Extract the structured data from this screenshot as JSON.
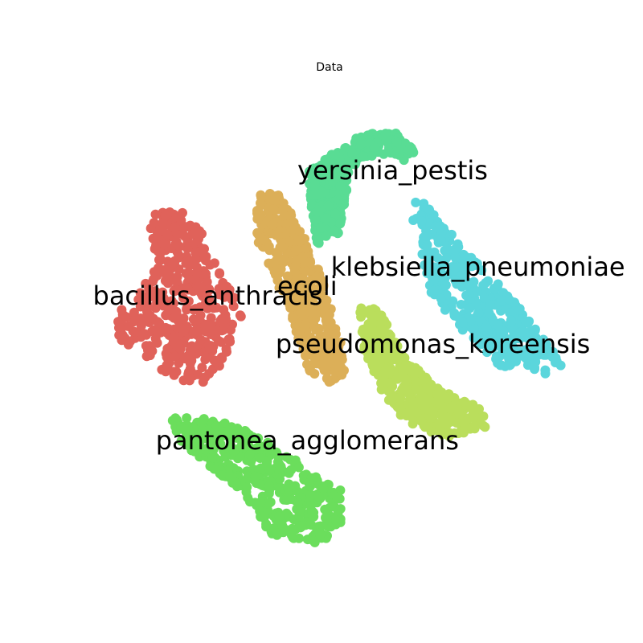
{
  "chart_data": {
    "type": "scatter",
    "title": "Data",
    "xlabel": "",
    "ylabel": "",
    "axes_visible": false,
    "grid": false,
    "legend": "none",
    "series": [
      {
        "name": "bacillus_anthracis",
        "color": "#e0625a",
        "label_anchor": [
          -48,
          12
        ],
        "outline": [
          [
            -72,
            47
          ],
          [
            -58,
            48
          ],
          [
            -50,
            38
          ],
          [
            -42,
            20
          ],
          [
            -32,
            8
          ],
          [
            -38,
            -5
          ],
          [
            -44,
            -22
          ],
          [
            -58,
            -25
          ],
          [
            -74,
            -13
          ],
          [
            -86,
            -5
          ],
          [
            -88,
            4
          ],
          [
            -78,
            13
          ],
          [
            -70,
            24
          ],
          [
            -72,
            35
          ]
        ]
      },
      {
        "name": "ecoli",
        "color": "#dcaf58",
        "label_anchor": [
          -6,
          16
        ],
        "outline": [
          [
            -27,
            56
          ],
          [
            -16,
            54
          ],
          [
            -8,
            40
          ],
          [
            -2,
            26
          ],
          [
            4,
            8
          ],
          [
            8,
            -5
          ],
          [
            10,
            -20
          ],
          [
            4,
            -24
          ],
          [
            -6,
            -18
          ],
          [
            -10,
            -5
          ],
          [
            -14,
            10
          ],
          [
            -22,
            22
          ],
          [
            -28,
            38
          ]
        ]
      },
      {
        "name": "yersinia_pestis",
        "color": "#59dc94",
        "label_anchor": [
          30,
          64
        ],
        "outline": [
          [
            5,
            72
          ],
          [
            18,
            80
          ],
          [
            32,
            80
          ],
          [
            40,
            72
          ],
          [
            34,
            68
          ],
          [
            24,
            72
          ],
          [
            12,
            66
          ],
          [
            10,
            52
          ],
          [
            7,
            38
          ],
          [
            -2,
            34
          ],
          [
            -4,
            48
          ],
          [
            -6,
            64
          ]
        ]
      },
      {
        "name": "klebsiella_pneumoniae",
        "color": "#5bd6dc",
        "label_anchor": [
          66,
          24
        ],
        "outline": [
          [
            40,
            56
          ],
          [
            48,
            46
          ],
          [
            62,
            30
          ],
          [
            80,
            12
          ],
          [
            102,
            -16
          ],
          [
            94,
            -20
          ],
          [
            74,
            -16
          ],
          [
            56,
            2
          ],
          [
            46,
            14
          ],
          [
            42,
            30
          ],
          [
            38,
            46
          ]
        ]
      },
      {
        "name": "pseudomonas_koreensis",
        "color": "#bade5c",
        "label_anchor": [
          47,
          -8
        ],
        "outline": [
          [
            16,
            8
          ],
          [
            24,
            8
          ],
          [
            34,
            -12
          ],
          [
            50,
            -26
          ],
          [
            68,
            -34
          ],
          [
            70,
            -42
          ],
          [
            52,
            -46
          ],
          [
            36,
            -40
          ],
          [
            26,
            -28
          ],
          [
            18,
            -10
          ]
        ]
      },
      {
        "name": "pantonea_agglomerans",
        "color": "#6bde5c",
        "label_anchor": [
          -6,
          -48
        ],
        "outline": [
          [
            -63,
            -38
          ],
          [
            -44,
            -38
          ],
          [
            -26,
            -46
          ],
          [
            -10,
            -56
          ],
          [
            8,
            -68
          ],
          [
            10,
            -84
          ],
          [
            -2,
            -90
          ],
          [
            -22,
            -86
          ],
          [
            -32,
            -70
          ],
          [
            -50,
            -56
          ],
          [
            -62,
            -48
          ]
        ]
      }
    ]
  }
}
